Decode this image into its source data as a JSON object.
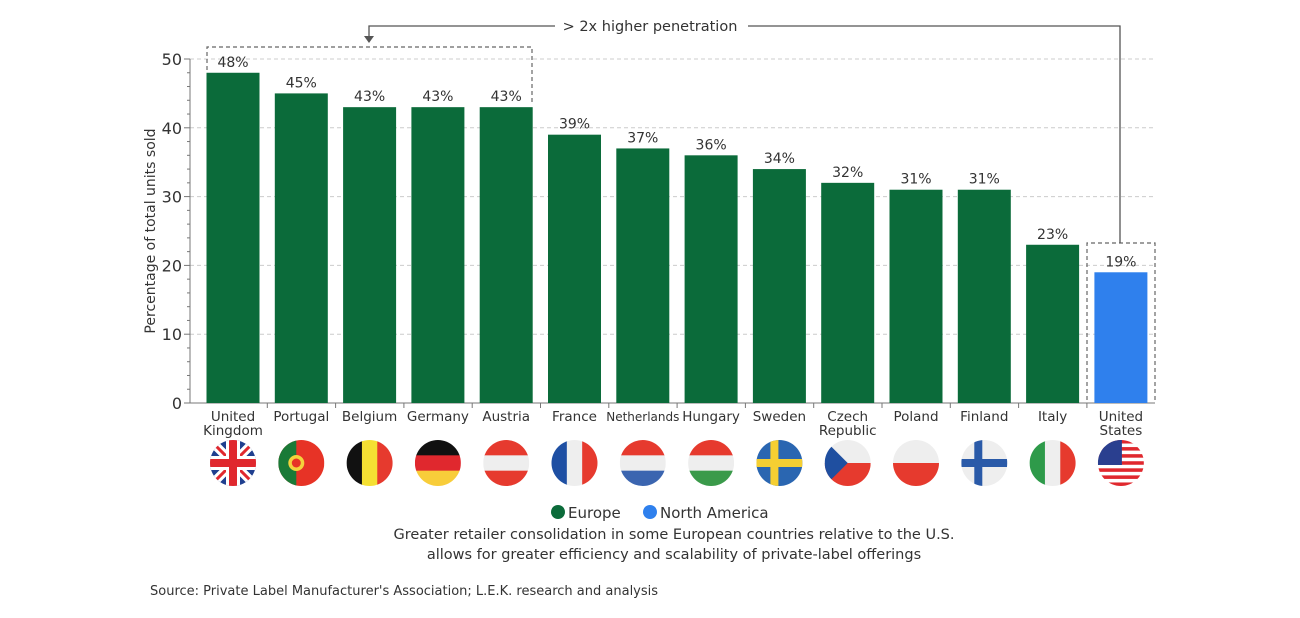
{
  "chart_data": {
    "type": "bar",
    "ylabel": "Percentage of total units sold",
    "ylim": [
      0,
      50
    ],
    "yticks": [
      0,
      10,
      20,
      30,
      40,
      50
    ],
    "grid": true,
    "categories": [
      "United Kingdom",
      "Portugal",
      "Belgium",
      "Germany",
      "Austria",
      "France",
      "Netherlands",
      "Hungary",
      "Sweden",
      "Czech Republic",
      "Poland",
      "Finland",
      "Italy",
      "United States"
    ],
    "values": [
      48,
      45,
      43,
      43,
      43,
      39,
      37,
      36,
      34,
      32,
      31,
      31,
      23,
      19
    ],
    "labels": [
      "48%",
      "45%",
      "43%",
      "43%",
      "43%",
      "39%",
      "37%",
      "36%",
      "34%",
      "32%",
      "31%",
      "31%",
      "23%",
      "19%"
    ],
    "regions": [
      "Europe",
      "Europe",
      "Europe",
      "Europe",
      "Europe",
      "Europe",
      "Europe",
      "Europe",
      "Europe",
      "Europe",
      "Europe",
      "Europe",
      "Europe",
      "North America"
    ],
    "legend": [
      {
        "name": "Europe",
        "color": "#0b6b3a"
      },
      {
        "name": "North America",
        "color": "#2f80ed"
      }
    ],
    "legend_placement": "bottom",
    "annotation": "> 2x higher penetration",
    "flags": [
      "uk",
      "pt",
      "be",
      "de",
      "at",
      "fr",
      "nl",
      "hu",
      "se",
      "cz",
      "pl",
      "fi",
      "it",
      "us"
    ]
  },
  "caption": [
    "Greater retailer consolidation in some European countries relative to the U.S.",
    "allows for greater efficiency and scalability of private-label offerings"
  ],
  "source": "Source: Private Label Manufacturer's Association; L.E.K. research and analysis"
}
